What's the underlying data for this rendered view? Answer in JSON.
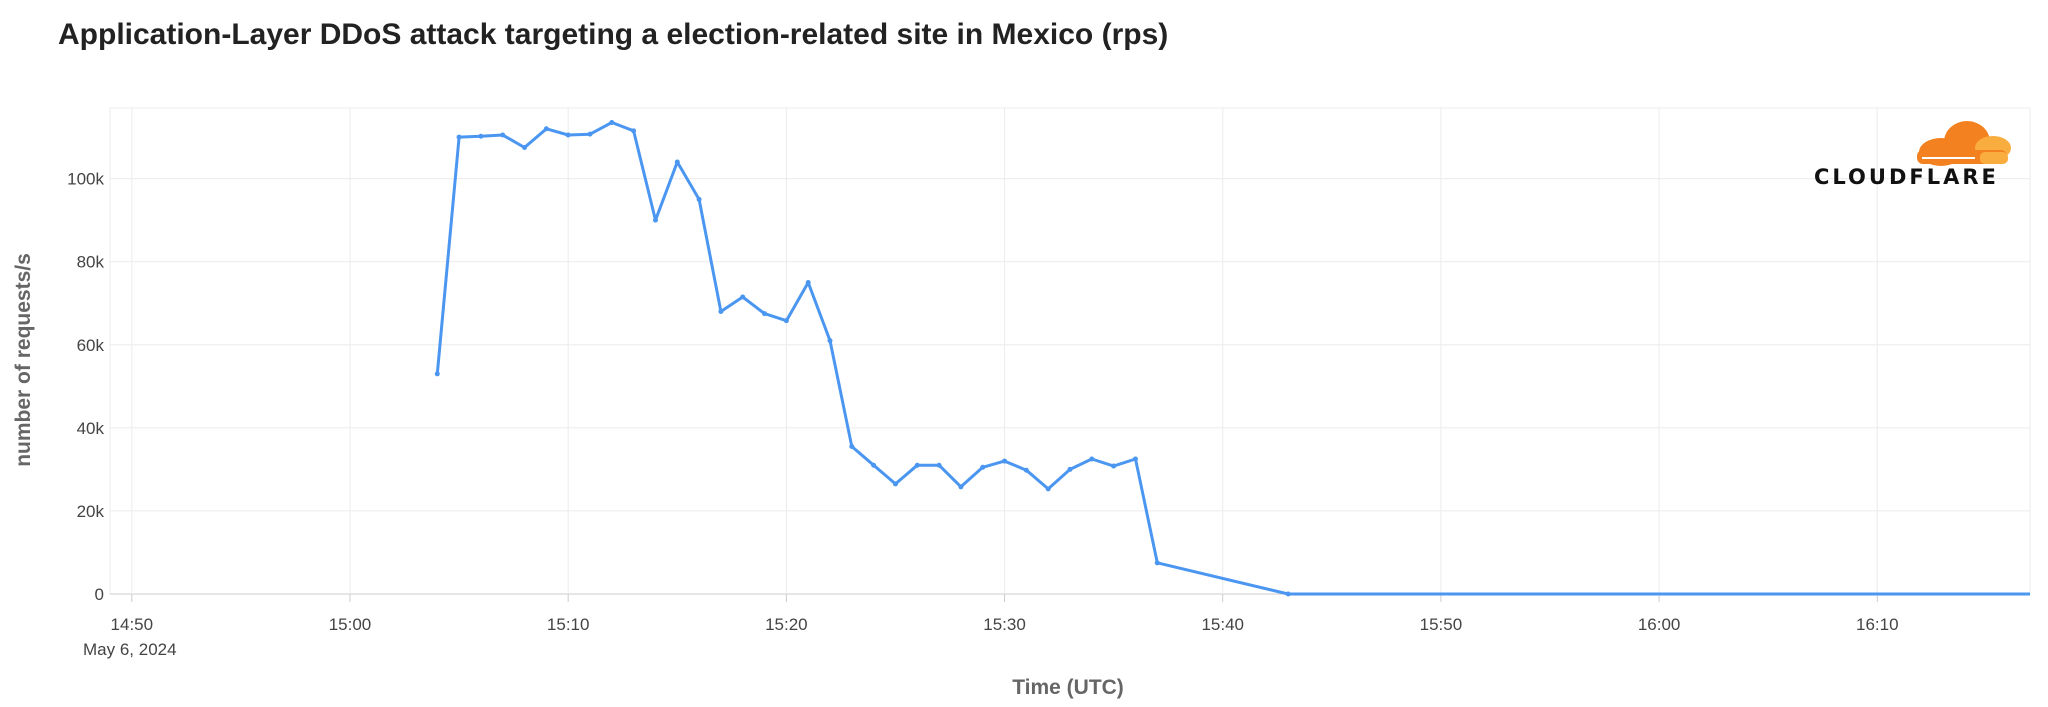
{
  "chart_data": {
    "type": "line",
    "title": "Application-Layer DDoS attack targeting a election-related site in Mexico (rps)",
    "xlabel": "Time (UTC)",
    "ylabel": "number of requests/s",
    "date_label": "May 6, 2024",
    "x_ticks": [
      "14:50",
      "15:00",
      "15:10",
      "15:20",
      "15:30",
      "15:40",
      "15:50",
      "16:00",
      "16:10"
    ],
    "y_ticks": [
      "0",
      "20k",
      "40k",
      "60k",
      "80k",
      "100k"
    ],
    "y_tick_values": [
      0,
      20000,
      40000,
      60000,
      80000,
      100000
    ],
    "ylim": [
      0,
      117000
    ],
    "xlim": [
      "14:49",
      "16:17"
    ],
    "grid": true,
    "line_color": "#4a96f0",
    "series": [
      {
        "x": [
          "15:04",
          "15:05",
          "15:06",
          "15:07",
          "15:08",
          "15:09",
          "15:10",
          "15:11",
          "15:12",
          "15:13",
          "15:14",
          "15:15",
          "15:16",
          "15:17",
          "15:18",
          "15:19",
          "15:20",
          "15:21",
          "15:22",
          "15:23",
          "15:24",
          "15:25",
          "15:26",
          "15:27",
          "15:28",
          "15:29",
          "15:30",
          "15:31",
          "15:32",
          "15:33",
          "15:34",
          "15:35",
          "15:36",
          "15:37",
          "15:43",
          "16:17"
        ],
        "values": [
          53000,
          110000,
          110200,
          110500,
          107500,
          112000,
          110500,
          110700,
          113500,
          111500,
          90000,
          104000,
          95000,
          68000,
          71500,
          67500,
          65800,
          75000,
          61000,
          35500,
          31000,
          26500,
          31000,
          31000,
          25800,
          30500,
          32000,
          29800,
          25300,
          30000,
          32500,
          30800,
          32500,
          7500,
          0,
          0
        ]
      }
    ]
  },
  "brand": {
    "logo_text": "CLOUDFLARE",
    "logo_color_primary": "#f48120",
    "logo_color_secondary": "#faad3f",
    "logo_icon": "cloud-icon"
  }
}
